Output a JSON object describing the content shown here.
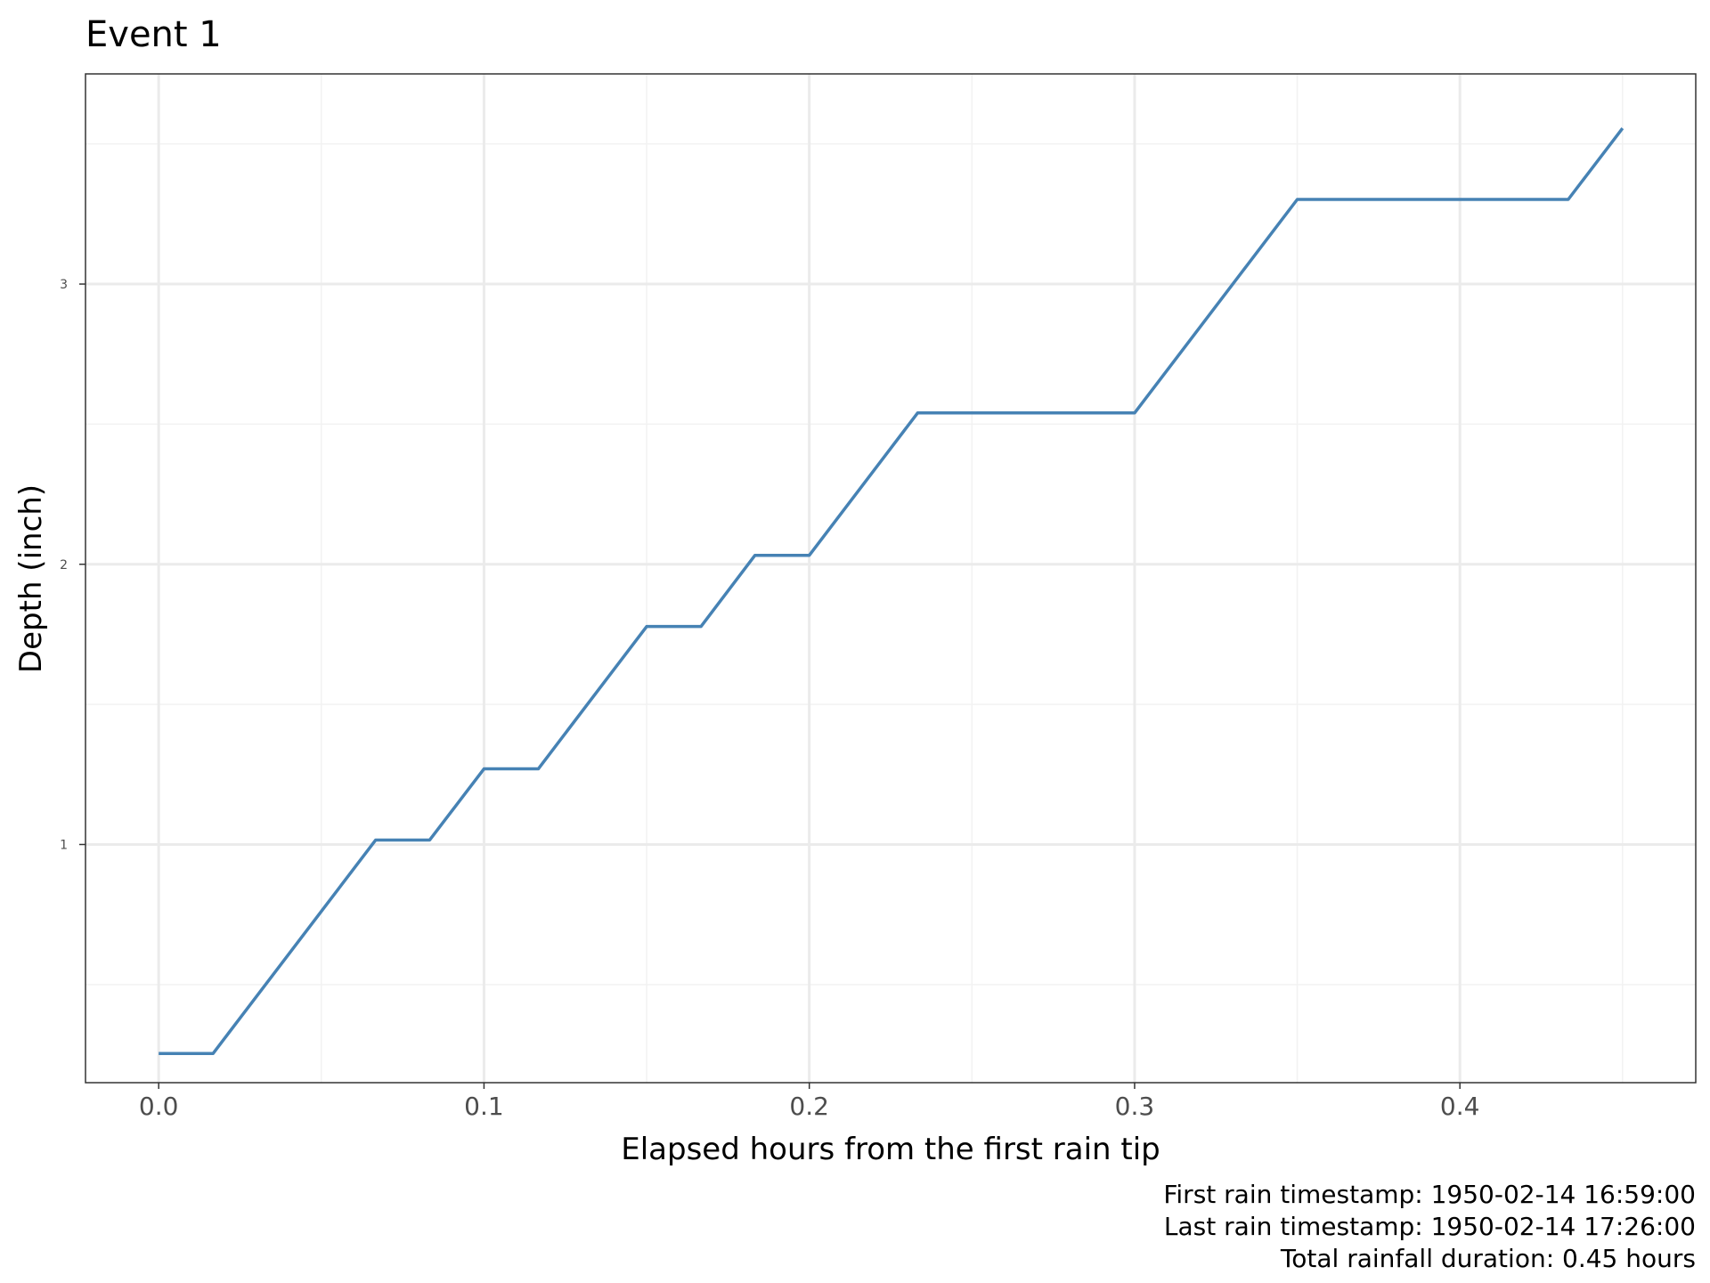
{
  "chart_data": {
    "type": "line",
    "title": "Event 1",
    "xlabel": "Elapsed hours from the first rain tip",
    "ylabel": "Depth (inch)",
    "x_ticks": [
      0.0,
      0.1,
      0.2,
      0.3,
      0.4
    ],
    "x_tick_labels": [
      "0.0",
      "0.1",
      "0.2",
      "0.3",
      "0.4"
    ],
    "y_ticks": [
      1,
      2,
      3
    ],
    "y_tick_labels": [
      "1",
      "2",
      "3"
    ],
    "xlim": [
      -0.0225,
      0.4725
    ],
    "ylim": [
      0.15,
      3.75
    ],
    "grid": true,
    "line_color": "#4682B4",
    "series": [
      {
        "x": [
          0.0,
          0.0167,
          0.0667,
          0.0833,
          0.1,
          0.1167,
          0.15,
          0.1667,
          0.1833,
          0.2,
          0.2333,
          0.3,
          0.35,
          0.4333,
          0.45
        ],
        "y": [
          0.254,
          0.254,
          1.016,
          1.016,
          1.27,
          1.27,
          1.778,
          1.778,
          2.032,
          2.032,
          2.54,
          2.54,
          3.302,
          3.302,
          3.556
        ]
      }
    ],
    "caption": [
      "First rain timestamp: 1950-02-14 16:59:00",
      "Last rain timestamp: 1950-02-14 17:26:00",
      "Total rainfall duration: 0.45 hours"
    ]
  }
}
